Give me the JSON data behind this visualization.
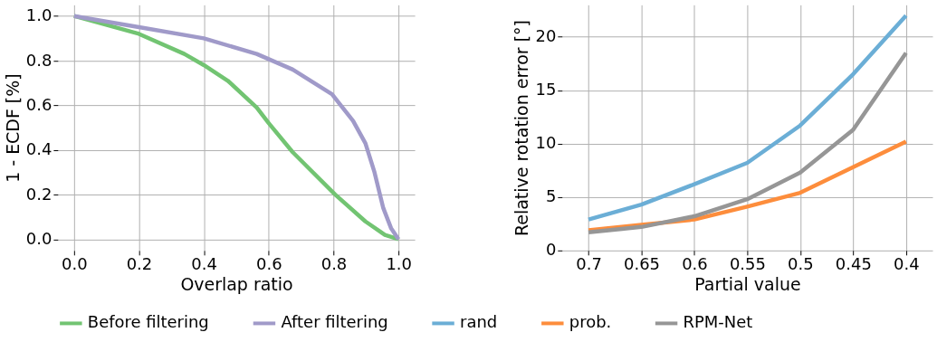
{
  "chart_data": [
    {
      "type": "line",
      "xlabel": "Overlap ratio",
      "ylabel": "1 - ECDF [%]",
      "xlim": [
        -0.05,
        1.05
      ],
      "ylim": [
        -0.05,
        1.05
      ],
      "xticks": [
        {
          "value": 0,
          "label": "0.0"
        },
        0.2,
        0.4,
        0.6,
        0.8,
        {
          "value": 1,
          "label": "1.0"
        }
      ],
      "yticks": [
        {
          "value": 0,
          "label": "0.0"
        },
        0.2,
        0.4,
        0.6,
        0.8,
        {
          "value": 1,
          "label": "1.0"
        }
      ],
      "grid": true,
      "legend": "bottom",
      "series": [
        {
          "name": "Before filtering",
          "color": "#72c472",
          "x": [
            0,
            0.2,
            0.34,
            0.4,
            0.474,
            0.563,
            0.6,
            0.674,
            0.805,
            0.898,
            0.958,
            1.0
          ],
          "values": [
            1.0,
            0.92,
            0.83,
            0.78,
            0.71,
            0.59,
            0.52,
            0.39,
            0.2,
            0.08,
            0.02,
            0.0
          ]
        },
        {
          "name": "After filtering",
          "color": "#a09ac9",
          "x": [
            0,
            0.2,
            0.4,
            0.563,
            0.674,
            0.795,
            0.86,
            0.898,
            0.926,
            0.953,
            0.977,
            1.0
          ],
          "values": [
            1.0,
            0.95,
            0.9,
            0.83,
            0.76,
            0.65,
            0.53,
            0.43,
            0.3,
            0.14,
            0.05,
            0.0
          ]
        }
      ]
    },
    {
      "type": "line",
      "xlabel": "Partial value",
      "ylabel": "Relative rotation error [°]",
      "categories": [
        "0.7",
        "0.65",
        "0.6",
        "0.55",
        "0.5",
        "0.45",
        "0.4"
      ],
      "ylim": [
        0,
        23
      ],
      "yticks": [
        0,
        5,
        10,
        15,
        20
      ],
      "grid": true,
      "legend": "bottom",
      "series": [
        {
          "name": "rand",
          "color": "#6baed6",
          "values": [
            2.9,
            4.3,
            6.2,
            8.2,
            11.7,
            16.5,
            22.0
          ]
        },
        {
          "name": "prob.",
          "color": "#fd8d3c",
          "values": [
            1.9,
            2.4,
            2.9,
            4.1,
            5.4,
            7.8,
            10.2
          ]
        },
        {
          "name": "RPM-Net",
          "color": "#969696",
          "values": [
            1.7,
            2.2,
            3.2,
            4.8,
            7.3,
            11.3,
            18.5
          ]
        }
      ]
    }
  ]
}
